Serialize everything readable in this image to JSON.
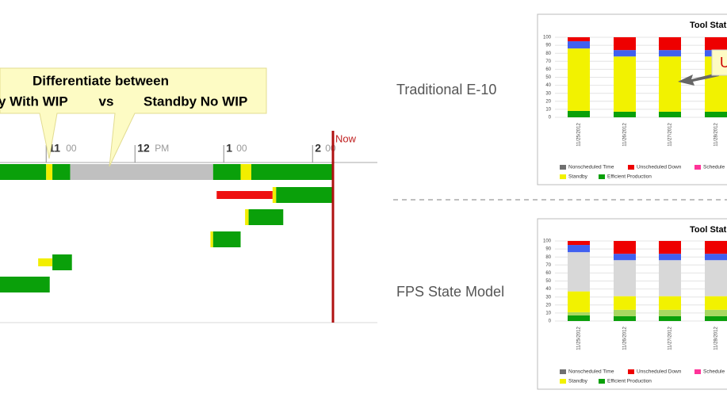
{
  "callout": {
    "title": "Differentiate between",
    "left": "y With WIP",
    "middle": "vs",
    "right": "Standby No WIP"
  },
  "labels": {
    "top": "Traditional E-10",
    "bottom": "FPS State Model"
  },
  "chart_data": [
    {
      "type": "gantt",
      "xlim": [
        10.48,
        14.73
      ],
      "xticks": [
        {
          "value": 11,
          "label": "11",
          "sub": "00"
        },
        {
          "value": 12,
          "label": "12",
          "sub": "PM"
        },
        {
          "value": 13,
          "label": "1",
          "sub": "00"
        },
        {
          "value": 14,
          "label": "2",
          "sub": "00"
        }
      ],
      "now": {
        "value": 14.23,
        "label": "Now"
      },
      "rows": [
        [
          {
            "start": 10.48,
            "end": 11.0,
            "color": "#0aa00a"
          },
          {
            "start": 11.0,
            "end": 11.07,
            "color": "#f2ee00"
          },
          {
            "start": 11.07,
            "end": 11.27,
            "color": "#0aa00a"
          },
          {
            "start": 11.27,
            "end": 12.88,
            "color": "#c0c0c0"
          },
          {
            "start": 12.88,
            "end": 13.19,
            "color": "#0aa00a"
          },
          {
            "start": 13.19,
            "end": 13.31,
            "color": "#f2ee00"
          },
          {
            "start": 13.31,
            "end": 14.23,
            "color": "#0aa00a"
          }
        ],
        [
          {
            "start": 12.92,
            "end": 13.55,
            "color": "#ee1010"
          },
          {
            "start": 13.55,
            "end": 13.59,
            "color": "#f2ee00"
          },
          {
            "start": 13.59,
            "end": 14.22,
            "color": "#0aa00a"
          }
        ],
        [
          {
            "start": 13.24,
            "end": 13.28,
            "color": "#f2ee00"
          },
          {
            "start": 13.28,
            "end": 13.67,
            "color": "#0aa00a"
          }
        ],
        [
          {
            "start": 12.85,
            "end": 12.88,
            "color": "#f2ee00"
          },
          {
            "start": 12.88,
            "end": 13.19,
            "color": "#0aa00a"
          }
        ],
        [
          {
            "start": 10.91,
            "end": 11.07,
            "color": "#f2ee00"
          },
          {
            "start": 11.07,
            "end": 11.29,
            "color": "#0aa00a"
          }
        ],
        [
          {
            "start": 10.48,
            "end": 11.04,
            "color": "#0aa00a"
          }
        ]
      ]
    },
    {
      "type": "bar",
      "title": "Tool Stat",
      "annotation": "U",
      "categories": [
        "11/25/2012",
        "11/26/2012",
        "11/27/2012",
        "11/28/2012"
      ],
      "ylim": [
        0,
        100
      ],
      "yticks": [
        0,
        10,
        20,
        30,
        40,
        50,
        60,
        70,
        80,
        90,
        100
      ],
      "series": [
        {
          "name": "Efficient Production",
          "color": "#0aa00a",
          "values": [
            8,
            7,
            7,
            7
          ]
        },
        {
          "name": "Standby",
          "color": "#f2f200",
          "values": [
            78,
            69,
            69,
            69
          ]
        },
        {
          "name": null,
          "color": "#4060f0",
          "values": [
            9,
            8,
            8,
            8
          ]
        },
        {
          "name": "Unscheduled Down",
          "color": "#ee0000",
          "values": [
            5,
            16,
            16,
            16
          ]
        }
      ],
      "legend": [
        "Nonscheduled Time",
        "Unscheduled Down",
        "Schedule",
        "Standby",
        "Efficient Production"
      ],
      "legend_colors": [
        "#707070",
        "#ee0000",
        "#ff3399",
        "#f2f200",
        "#0aa00a"
      ]
    },
    {
      "type": "bar",
      "title": "Tool Stat",
      "categories": [
        "11/25/2012",
        "11/26/2012",
        "11/27/2012",
        "11/28/2012"
      ],
      "ylim": [
        0,
        100
      ],
      "yticks": [
        0,
        10,
        20,
        30,
        40,
        50,
        60,
        70,
        80,
        90,
        100
      ],
      "series": [
        {
          "name": "Efficient Production",
          "color": "#0aa00a",
          "values": [
            7,
            6,
            6,
            6
          ]
        },
        {
          "name": null,
          "color": "#a8d860",
          "values": [
            4,
            8,
            8,
            8
          ]
        },
        {
          "name": "Standby",
          "color": "#f2f200",
          "values": [
            26,
            17,
            17,
            17
          ]
        },
        {
          "name": "Nonscheduled Time",
          "color": "#d8d8d8",
          "values": [
            49,
            45,
            45,
            45
          ]
        },
        {
          "name": null,
          "color": "#4060f0",
          "values": [
            9,
            8,
            8,
            8
          ]
        },
        {
          "name": "Unscheduled Down",
          "color": "#ee0000",
          "values": [
            5,
            16,
            16,
            16
          ]
        }
      ],
      "legend": [
        "Nonscheduled Time",
        "Unscheduled Down",
        "Schedule",
        "Standby",
        "Efficient Production"
      ],
      "legend_colors": [
        "#707070",
        "#ee0000",
        "#ff3399",
        "#f2f200",
        "#0aa00a"
      ]
    }
  ]
}
